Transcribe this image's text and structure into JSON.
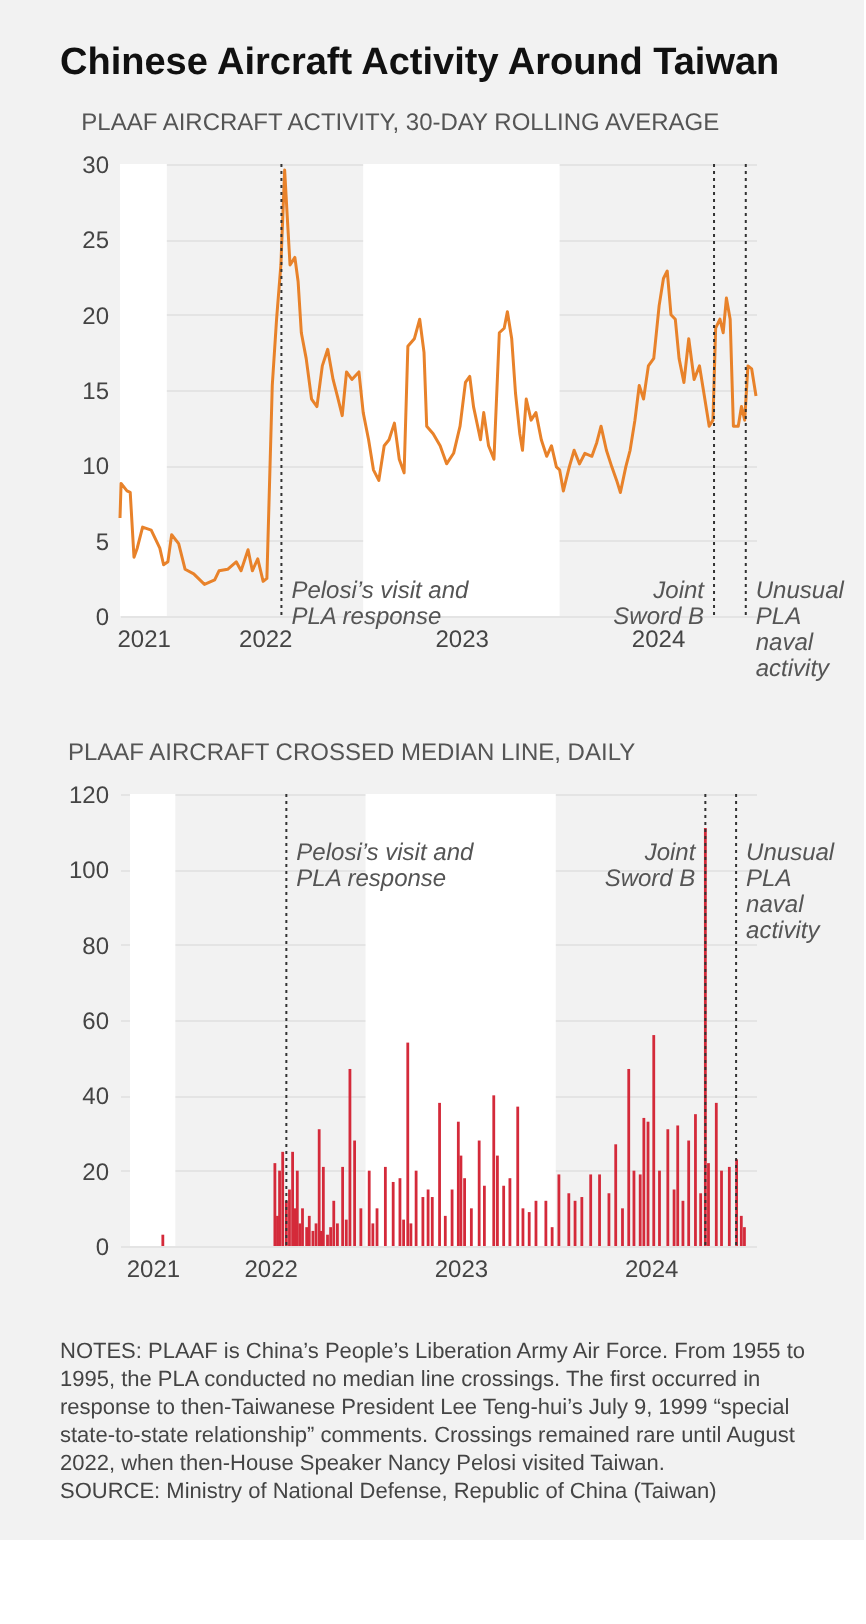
{
  "chart_data": [
    {
      "type": "line",
      "title": "Chinese Aircraft Activity Around Taiwan",
      "subtitle": "PLAAF AIRCRAFT ACTIVITY, 30-DAY ROLLING AVERAGE",
      "x": [
        "2021-10-06",
        "2021-10-08",
        "2021-10-19",
        "2021-10-25",
        "2021-11-01",
        "2021-11-07",
        "2021-11-17",
        "2021-12-03",
        "2021-12-19",
        "2021-12-26",
        "2022-01-03",
        "2022-01-10",
        "2022-01-23",
        "2022-02-04",
        "2022-02-20",
        "2022-03-12",
        "2022-03-31",
        "2022-04-08",
        "2022-04-24",
        "2022-05-10",
        "2022-05-19",
        "2022-06-01",
        "2022-06-09",
        "2022-06-19",
        "2022-06-29",
        "2022-07-06",
        "2022-07-16",
        "2022-07-24",
        "2022-08-01",
        "2022-08-08",
        "2022-08-13",
        "2022-08-18",
        "2022-08-27",
        "2022-09-02",
        "2022-09-08",
        "2022-09-17",
        "2022-09-27",
        "2022-10-07",
        "2022-10-17",
        "2022-10-27",
        "2022-11-06",
        "2022-11-14",
        "2022-11-23",
        "2022-12-01",
        "2022-12-11",
        "2022-12-24",
        "2023-01-01",
        "2023-01-11",
        "2023-01-20",
        "2023-01-30",
        "2023-02-09",
        "2023-02-18",
        "2023-02-28",
        "2023-03-09",
        "2023-03-18",
        "2023-03-25",
        "2023-04-06",
        "2023-04-16",
        "2023-04-24",
        "2023-04-29",
        "2023-05-11",
        "2023-05-24",
        "2023-06-05",
        "2023-06-18",
        "2023-06-30",
        "2023-07-10",
        "2023-07-18",
        "2023-07-25",
        "2023-08-07",
        "2023-08-13",
        "2023-08-22",
        "2023-09-01",
        "2023-09-11",
        "2023-09-20",
        "2023-09-26",
        "2023-10-04",
        "2023-10-11",
        "2023-10-19",
        "2023-10-24",
        "2023-10-31",
        "2023-11-09",
        "2023-11-18",
        "2023-11-28",
        "2023-12-08",
        "2023-12-17",
        "2023-12-26",
        "2024-01-01",
        "2024-01-08",
        "2024-01-19",
        "2024-01-28",
        "2024-02-07",
        "2024-02-17",
        "2024-03-01",
        "2024-03-10",
        "2024-03-18",
        "2024-03-28",
        "2024-04-07",
        "2024-04-16",
        "2024-04-23",
        "2024-05-03",
        "2024-05-11",
        "2024-05-20",
        "2024-05-28",
        "2024-06-05",
        "2024-06-14",
        "2024-06-24",
        "2024-07-04",
        "2024-07-12",
        "2024-07-19",
        "2024-07-26",
        "2024-08-03",
        "2024-08-10",
        "2024-08-19",
        "2024-08-28",
        "2024-09-07",
        "2024-09-17",
        "2024-09-26",
        "2024-10-05",
        "2024-10-12",
        "2024-10-17",
        "2024-10-25",
        "2024-10-31",
        "2024-11-06",
        "2024-11-13",
        "2024-11-19",
        "2024-11-28",
        "2024-12-04",
        "2024-12-10",
        "2024-12-16",
        "2024-12-23",
        "2024-12-31"
      ],
      "values": [
        6.5,
        8.8,
        8.3,
        8.2,
        3.9,
        4.5,
        5.9,
        5.7,
        4.5,
        3.4,
        3.6,
        5.4,
        4.8,
        3.1,
        2.8,
        2.1,
        2.4,
        3.0,
        3.1,
        3.6,
        3.0,
        4.4,
        3.0,
        3.8,
        2.3,
        2.5,
        15.3,
        19.7,
        23.3,
        29.6,
        26.4,
        23.3,
        23.8,
        22.2,
        18.8,
        17.1,
        14.4,
        13.9,
        16.6,
        17.7,
        15.7,
        14.6,
        13.3,
        16.2,
        15.7,
        16.2,
        13.5,
        11.7,
        9.7,
        9.0,
        11.3,
        11.7,
        12.8,
        10.4,
        9.5,
        17.9,
        18.4,
        19.7,
        17.5,
        12.6,
        12.1,
        11.3,
        10.1,
        10.8,
        12.6,
        15.5,
        15.9,
        13.9,
        11.7,
        13.5,
        11.3,
        10.4,
        18.8,
        19.1,
        20.2,
        18.4,
        14.8,
        12.1,
        11.0,
        14.4,
        13.0,
        13.5,
        11.7,
        10.6,
        11.3,
        9.9,
        9.7,
        8.3,
        9.9,
        11.0,
        10.1,
        10.8,
        10.6,
        11.5,
        12.6,
        11.0,
        9.9,
        9.0,
        8.2,
        9.9,
        11.0,
        13.0,
        15.3,
        14.4,
        16.6,
        17.1,
        20.6,
        22.4,
        22.9,
        20.0,
        19.7,
        17.1,
        15.5,
        18.4,
        15.7,
        16.6,
        14.6,
        12.6,
        13.0,
        19.1,
        19.7,
        18.8,
        21.1,
        19.7,
        12.6,
        12.6,
        13.9,
        13.0,
        16.6,
        16.4,
        14.6
      ],
      "color": "#e8822a",
      "xlim": [
        "2021-10-06",
        "2024-12-31"
      ],
      "xticks": [
        {
          "value": "2021-11-18",
          "label": "2021"
        },
        {
          "value": "2022-07-02",
          "label": "2022"
        },
        {
          "value": "2023-07-02",
          "label": "2023"
        },
        {
          "value": "2024-07-01",
          "label": "2024"
        }
      ],
      "ylim": [
        0,
        30
      ],
      "yticks": [
        0,
        5,
        10,
        15,
        20,
        25,
        30
      ],
      "grid": "y",
      "bands": [
        {
          "axis": "x",
          "from": "2021-10-06",
          "to": "2022-01-01",
          "color": "#ffffff"
        },
        {
          "axis": "x",
          "from": "2023-01-01",
          "to": "2024-01-01",
          "color": "#ffffff"
        }
      ],
      "ref_lines": [
        {
          "axis": "x",
          "value": "2022-08-02",
          "label": "Pelosi’s visit and PLA response",
          "line_style": "dotted",
          "color": "#333333"
        },
        {
          "axis": "x",
          "value": "2024-10-14",
          "label": "Joint Sword B",
          "line_style": "dotted",
          "color": "#333333"
        },
        {
          "axis": "x",
          "value": "2024-12-12",
          "label": "Unusual PLA naval activity",
          "line_style": "dotted",
          "color": "#333333"
        }
      ]
    },
    {
      "type": "bar",
      "subtitle": "PLAAF AIRCRAFT CROSSED MEDIAN LINE, DAILY",
      "x": [
        "2021-12-08",
        "2022-07-11",
        "2022-07-16",
        "2022-07-20",
        "2022-07-26",
        "2022-08-02",
        "2022-08-08",
        "2022-08-14",
        "2022-08-18",
        "2022-08-23",
        "2022-08-28",
        "2022-09-02",
        "2022-09-10",
        "2022-09-15",
        "2022-09-22",
        "2022-09-28",
        "2022-10-04",
        "2022-10-08",
        "2022-10-12",
        "2022-10-20",
        "2022-10-26",
        "2022-11-01",
        "2022-11-08",
        "2022-11-18",
        "2022-11-25",
        "2022-12-02",
        "2022-12-11",
        "2022-12-23",
        "2023-01-08",
        "2023-01-15",
        "2023-01-23",
        "2023-02-08",
        "2023-02-23",
        "2023-03-08",
        "2023-03-15",
        "2023-03-23",
        "2023-03-29",
        "2023-04-08",
        "2023-04-21",
        "2023-05-01",
        "2023-05-09",
        "2023-05-23",
        "2023-06-03",
        "2023-06-16",
        "2023-06-28",
        "2023-07-03",
        "2023-07-10",
        "2023-07-23",
        "2023-08-07",
        "2023-08-17",
        "2023-09-04",
        "2023-09-11",
        "2023-09-23",
        "2023-10-05",
        "2023-10-20",
        "2023-10-30",
        "2023-11-11",
        "2023-11-24",
        "2023-12-13",
        "2023-12-25",
        "2024-01-07",
        "2024-01-26",
        "2024-02-07",
        "2024-02-20",
        "2024-03-08",
        "2024-03-25",
        "2024-04-12",
        "2024-04-25",
        "2024-05-08",
        "2024-05-20",
        "2024-05-30",
        "2024-06-11",
        "2024-06-18",
        "2024-06-26",
        "2024-07-07",
        "2024-07-18",
        "2024-08-03",
        "2024-08-15",
        "2024-08-22",
        "2024-09-01",
        "2024-09-12",
        "2024-09-25",
        "2024-10-05",
        "2024-10-14",
        "2024-10-20",
        "2024-11-04",
        "2024-11-14",
        "2024-11-29",
        "2024-12-13",
        "2024-12-22",
        "2024-12-28"
      ],
      "values": [
        3,
        22,
        8,
        20,
        25,
        12,
        15,
        25,
        10,
        20,
        6,
        10,
        5,
        8,
        4,
        6,
        31,
        4,
        21,
        3,
        5,
        12,
        6,
        21,
        7,
        47,
        28,
        10,
        20,
        6,
        10,
        21,
        17,
        18,
        7,
        54,
        6,
        20,
        13,
        15,
        13,
        38,
        8,
        15,
        33,
        24,
        18,
        10,
        28,
        16,
        40,
        24,
        16,
        18,
        37,
        10,
        9,
        12,
        12,
        5,
        19,
        14,
        12,
        13,
        19,
        19,
        14,
        27,
        10,
        47,
        20,
        19,
        34,
        33,
        56,
        20,
        31,
        15,
        32,
        12,
        28,
        35,
        14,
        111,
        22,
        38,
        20,
        21,
        23,
        8,
        5
      ],
      "color": "#d42a3a",
      "xlim": [
        "2021-10-06",
        "2024-12-31"
      ],
      "xticks": [
        {
          "value": "2021-11-18",
          "label": "2021"
        },
        {
          "value": "2022-07-02",
          "label": "2022"
        },
        {
          "value": "2023-07-02",
          "label": "2023"
        },
        {
          "value": "2024-07-01",
          "label": "2024"
        }
      ],
      "ylim": [
        0,
        120
      ],
      "yticks": [
        0,
        20,
        40,
        60,
        80,
        100,
        120
      ],
      "grid": "y",
      "bands": [
        {
          "axis": "x",
          "from": "2021-10-06",
          "to": "2022-01-01",
          "color": "#ffffff"
        },
        {
          "axis": "x",
          "from": "2023-01-01",
          "to": "2024-01-01",
          "color": "#ffffff"
        }
      ],
      "ref_lines": [
        {
          "axis": "x",
          "value": "2022-08-02",
          "label": "Pelosi’s visit and PLA response",
          "line_style": "dotted",
          "color": "#333333"
        },
        {
          "axis": "x",
          "value": "2024-10-14",
          "label": "Joint Sword B",
          "line_style": "dotted",
          "color": "#333333"
        },
        {
          "axis": "x",
          "value": "2024-12-12",
          "label": "Unusual PLA naval activity",
          "line_style": "dotted",
          "color": "#333333"
        }
      ],
      "annotations": [
        "NOTES: PLAAF is China’s People’s Liberation Army Air Force. From 1955 to 1995, the PLA conducted no median line crossings. The first occurred in response to then-Taiwanese President Lee Teng-hui’s July 9, 1999 “special state-to-state relationship” comments. Crossings remained rare until August 2022, when then-House Speaker Nancy Pelosi visited Taiwan.",
        "SOURCE: Ministry of National Defense, Republic of China (Taiwan)"
      ]
    }
  ]
}
